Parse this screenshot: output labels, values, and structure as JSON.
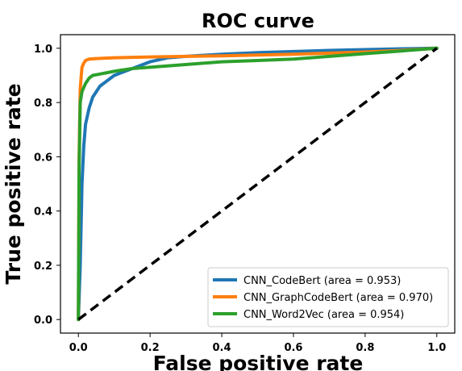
{
  "chart_data": {
    "type": "line",
    "title": "ROC curve",
    "xlabel": "False positive rate",
    "ylabel": "True positive rate",
    "xlim": [
      -0.05,
      1.05
    ],
    "ylim": [
      -0.05,
      1.05
    ],
    "xticks": [
      0.0,
      0.2,
      0.4,
      0.6,
      0.8,
      1.0
    ],
    "xtick_labels": [
      "0.0",
      "0.2",
      "0.4",
      "0.6",
      "0.8",
      "1.0"
    ],
    "yticks": [
      0.0,
      0.2,
      0.4,
      0.6,
      0.8,
      1.0
    ],
    "ytick_labels": [
      "0.0",
      "0.2",
      "0.4",
      "0.6",
      "0.8",
      "1.0"
    ],
    "grid": false,
    "legend_position": "lower-right",
    "series": [
      {
        "name": "CNN_CodeBert (area = 0.953)",
        "color": "#1f77b4",
        "x": [
          0.0,
          0.005,
          0.01,
          0.015,
          0.02,
          0.03,
          0.04,
          0.05,
          0.06,
          0.08,
          0.1,
          0.13,
          0.16,
          0.2,
          0.25,
          0.3,
          0.4,
          0.5,
          0.6,
          0.7,
          0.8,
          0.9,
          1.0
        ],
        "y": [
          0.0,
          0.2,
          0.5,
          0.64,
          0.72,
          0.78,
          0.82,
          0.84,
          0.86,
          0.88,
          0.9,
          0.915,
          0.93,
          0.95,
          0.965,
          0.97,
          0.978,
          0.984,
          0.988,
          0.992,
          0.995,
          0.998,
          1.0
        ]
      },
      {
        "name": "CNN_GraphCodeBert (area = 0.970)",
        "color": "#ff7f0e",
        "x": [
          0.0,
          0.002,
          0.005,
          0.008,
          0.01,
          0.015,
          0.02,
          0.03,
          0.05,
          0.1,
          0.2,
          0.3,
          0.4,
          0.5,
          0.6,
          0.7,
          0.8,
          0.9,
          1.0
        ],
        "y": [
          0.0,
          0.6,
          0.85,
          0.9,
          0.93,
          0.945,
          0.955,
          0.96,
          0.962,
          0.965,
          0.968,
          0.97,
          0.972,
          0.975,
          0.978,
          0.982,
          0.986,
          0.992,
          1.0
        ]
      },
      {
        "name": "CNN_Word2Vec (area = 0.954)",
        "color": "#2ca02c",
        "x": [
          0.0,
          0.002,
          0.005,
          0.01,
          0.02,
          0.03,
          0.04,
          0.06,
          0.08,
          0.1,
          0.15,
          0.2,
          0.3,
          0.4,
          0.5,
          0.6,
          0.7,
          0.8,
          0.9,
          1.0
        ],
        "y": [
          0.0,
          0.55,
          0.8,
          0.84,
          0.87,
          0.89,
          0.9,
          0.905,
          0.91,
          0.915,
          0.925,
          0.93,
          0.94,
          0.95,
          0.955,
          0.96,
          0.97,
          0.98,
          0.99,
          1.0
        ]
      },
      {
        "name": "",
        "color": "#000000",
        "dashed": true,
        "x": [
          0.0,
          1.0
        ],
        "y": [
          0.0,
          1.0
        ]
      }
    ]
  }
}
